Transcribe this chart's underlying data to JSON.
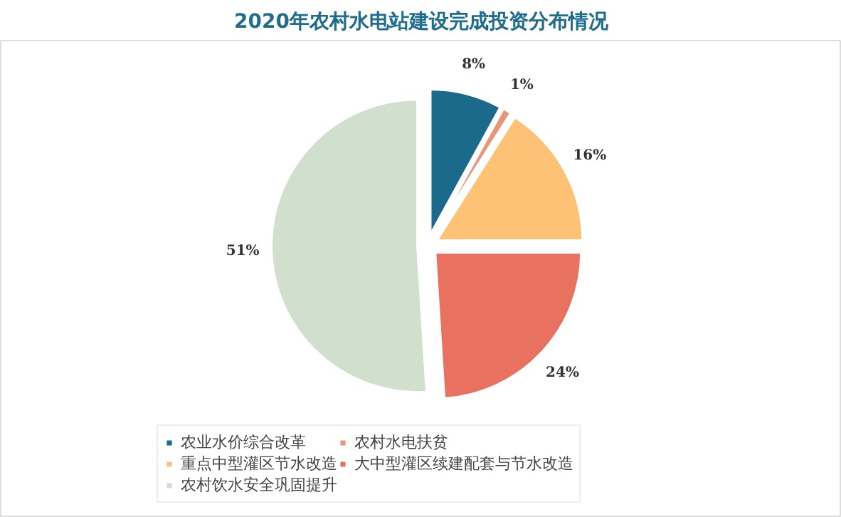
{
  "chart_data": {
    "type": "pie",
    "title": "2020年农村水电站建设完成投资分布情况",
    "categories": [
      "农业水价综合改革",
      "农村水电扶贫",
      "重点中型灌区节水改造",
      "大中型灌区续建配套与节水改造",
      "农村饮水安全巩固提升"
    ],
    "values": [
      8,
      1,
      16,
      24,
      51
    ],
    "colors": [
      "#1b6a8c",
      "#e8967a",
      "#fec277",
      "#e87160",
      "#d0e0cc"
    ],
    "value_labels": [
      "8%",
      "1%",
      "16%",
      "24%",
      "51%"
    ],
    "legend": "bottom"
  }
}
